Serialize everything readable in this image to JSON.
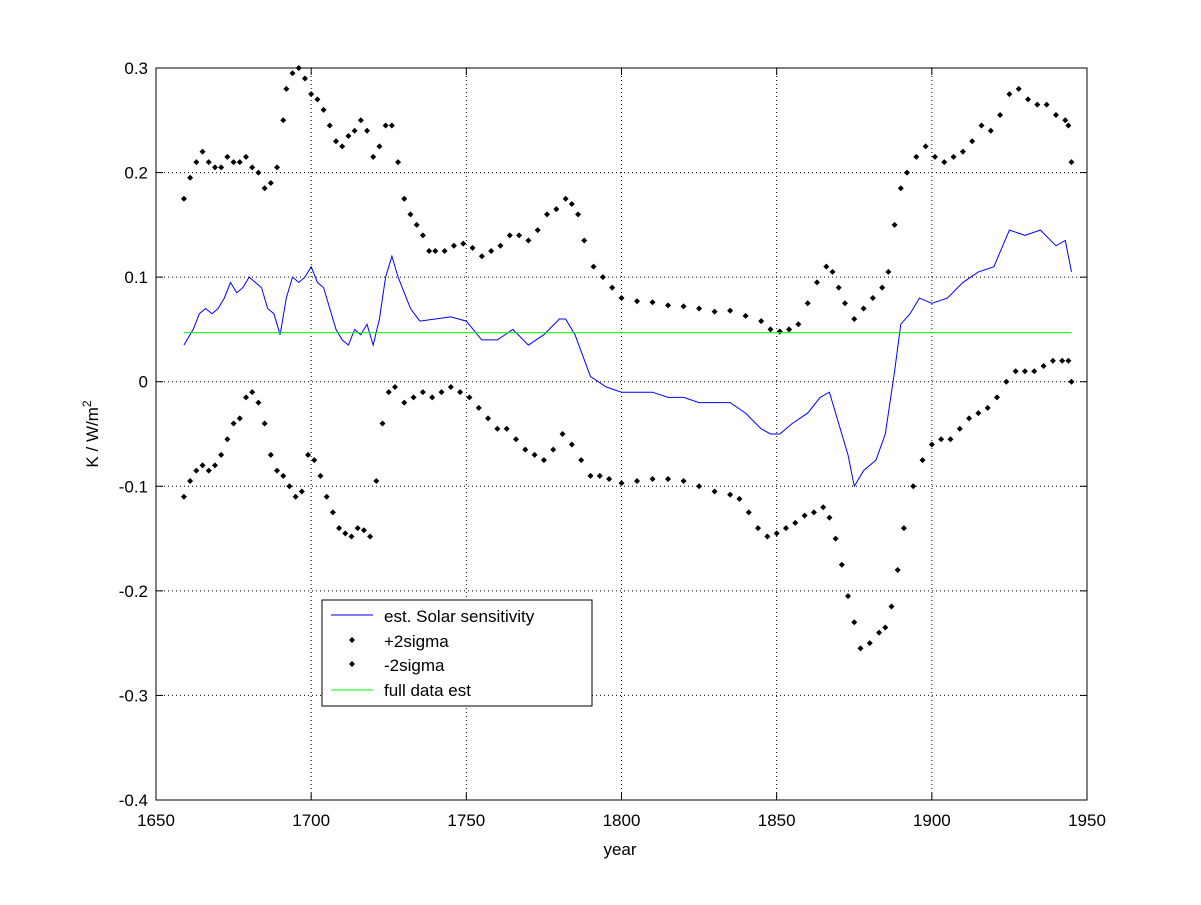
{
  "chart_data": {
    "type": "line",
    "title": "",
    "xlabel": "year",
    "ylabel": "K / W/m",
    "ylabel_superscript": "2",
    "xlim": [
      1650,
      1950
    ],
    "ylim": [
      -0.4,
      0.3
    ],
    "xticks": [
      1650,
      1700,
      1750,
      1800,
      1850,
      1900,
      1950
    ],
    "yticks": [
      -0.4,
      -0.3,
      -0.2,
      -0.1,
      0,
      0.1,
      0.2,
      0.3
    ],
    "xtick_labels": [
      "1650",
      "1700",
      "1750",
      "1800",
      "1850",
      "1900",
      "1950"
    ],
    "ytick_labels": [
      "-0.4",
      "-0.3",
      "-0.2",
      "-0.1",
      "0",
      "0.1",
      "0.2",
      "0.3"
    ],
    "grid": true,
    "legend_placement": "lower-left",
    "series": [
      {
        "name": "est. Solar sensitivity",
        "style": "line",
        "color": "#0000ff",
        "x": [
          1659,
          1662,
          1664,
          1666,
          1668,
          1670,
          1672,
          1674,
          1676,
          1678,
          1680,
          1682,
          1684,
          1686,
          1688,
          1690,
          1692,
          1694,
          1696,
          1698,
          1700,
          1702,
          1704,
          1706,
          1708,
          1710,
          1712,
          1714,
          1716,
          1718,
          1720,
          1722,
          1724,
          1726,
          1728,
          1730,
          1732,
          1735,
          1740,
          1745,
          1750,
          1755,
          1760,
          1765,
          1770,
          1775,
          1780,
          1782,
          1785,
          1790,
          1795,
          1800,
          1805,
          1810,
          1815,
          1820,
          1825,
          1830,
          1835,
          1840,
          1845,
          1848,
          1851,
          1855,
          1860,
          1864,
          1867,
          1870,
          1873,
          1875,
          1878,
          1882,
          1885,
          1888,
          1890,
          1893,
          1896,
          1900,
          1905,
          1910,
          1915,
          1920,
          1925,
          1930,
          1935,
          1940,
          1943,
          1945
        ],
        "y": [
          0.035,
          0.05,
          0.065,
          0.07,
          0.065,
          0.07,
          0.08,
          0.095,
          0.085,
          0.09,
          0.1,
          0.095,
          0.09,
          0.07,
          0.065,
          0.045,
          0.08,
          0.1,
          0.095,
          0.1,
          0.11,
          0.095,
          0.09,
          0.07,
          0.05,
          0.04,
          0.035,
          0.05,
          0.045,
          0.055,
          0.035,
          0.06,
          0.1,
          0.12,
          0.1,
          0.085,
          0.07,
          0.058,
          0.06,
          0.062,
          0.058,
          0.04,
          0.04,
          0.05,
          0.035,
          0.045,
          0.06,
          0.06,
          0.045,
          0.005,
          -0.005,
          -0.01,
          -0.01,
          -0.01,
          -0.015,
          -0.015,
          -0.02,
          -0.02,
          -0.02,
          -0.03,
          -0.045,
          -0.05,
          -0.05,
          -0.04,
          -0.03,
          -0.015,
          -0.01,
          -0.04,
          -0.07,
          -0.1,
          -0.085,
          -0.075,
          -0.05,
          0.01,
          0.055,
          0.065,
          0.08,
          0.075,
          0.08,
          0.095,
          0.105,
          0.11,
          0.145,
          0.14,
          0.145,
          0.13,
          0.135,
          0.105
        ]
      },
      {
        "name": "+2sigma",
        "style": "points",
        "color": "#000000",
        "x": [
          1659,
          1661,
          1663,
          1665,
          1667,
          1669,
          1671,
          1673,
          1675,
          1677,
          1679,
          1681,
          1683,
          1685,
          1687,
          1689,
          1691,
          1692,
          1694,
          1696,
          1698,
          1700,
          1702,
          1704,
          1706,
          1708,
          1710,
          1712,
          1714,
          1716,
          1718,
          1720,
          1722,
          1724,
          1726,
          1728,
          1730,
          1732,
          1734,
          1736,
          1738,
          1740,
          1743,
          1746,
          1749,
          1752,
          1755,
          1758,
          1761,
          1764,
          1767,
          1770,
          1773,
          1776,
          1779,
          1782,
          1784,
          1786,
          1788,
          1791,
          1794,
          1797,
          1800,
          1805,
          1810,
          1815,
          1820,
          1825,
          1830,
          1835,
          1840,
          1845,
          1848,
          1851,
          1854,
          1857,
          1860,
          1863,
          1866,
          1868,
          1870,
          1872,
          1875,
          1878,
          1881,
          1884,
          1886,
          1888,
          1890,
          1892,
          1895,
          1898,
          1901,
          1904,
          1907,
          1910,
          1913,
          1916,
          1919,
          1922,
          1925,
          1928,
          1931,
          1934,
          1937,
          1940,
          1943,
          1944,
          1945
        ],
        "y": [
          0.175,
          0.195,
          0.21,
          0.22,
          0.21,
          0.205,
          0.205,
          0.215,
          0.21,
          0.21,
          0.215,
          0.205,
          0.2,
          0.185,
          0.19,
          0.205,
          0.25,
          0.28,
          0.295,
          0.3,
          0.29,
          0.275,
          0.27,
          0.26,
          0.245,
          0.23,
          0.225,
          0.235,
          0.24,
          0.25,
          0.24,
          0.215,
          0.225,
          0.245,
          0.245,
          0.21,
          0.175,
          0.16,
          0.15,
          0.14,
          0.125,
          0.125,
          0.125,
          0.13,
          0.132,
          0.128,
          0.12,
          0.125,
          0.13,
          0.14,
          0.14,
          0.135,
          0.145,
          0.16,
          0.165,
          0.175,
          0.17,
          0.16,
          0.135,
          0.11,
          0.1,
          0.09,
          0.08,
          0.077,
          0.076,
          0.073,
          0.072,
          0.07,
          0.067,
          0.068,
          0.063,
          0.058,
          0.05,
          0.048,
          0.05,
          0.055,
          0.075,
          0.095,
          0.11,
          0.105,
          0.09,
          0.075,
          0.06,
          0.07,
          0.08,
          0.09,
          0.105,
          0.15,
          0.185,
          0.2,
          0.215,
          0.225,
          0.215,
          0.21,
          0.215,
          0.22,
          0.23,
          0.245,
          0.24,
          0.255,
          0.275,
          0.28,
          0.27,
          0.265,
          0.265,
          0.255,
          0.25,
          0.245,
          0.21
        ]
      },
      {
        "name": "-2sigma",
        "style": "points",
        "color": "#000000",
        "x": [
          1659,
          1661,
          1663,
          1665,
          1667,
          1669,
          1671,
          1673,
          1675,
          1677,
          1679,
          1681,
          1683,
          1685,
          1687,
          1689,
          1691,
          1693,
          1695,
          1697,
          1699,
          1701,
          1703,
          1705,
          1707,
          1709,
          1711,
          1713,
          1715,
          1717,
          1719,
          1721,
          1723,
          1725,
          1727,
          1730,
          1733,
          1736,
          1739,
          1742,
          1745,
          1748,
          1751,
          1754,
          1757,
          1760,
          1763,
          1766,
          1769,
          1772,
          1775,
          1778,
          1781,
          1784,
          1787,
          1790,
          1793,
          1796,
          1800,
          1805,
          1810,
          1815,
          1820,
          1825,
          1830,
          1835,
          1838,
          1841,
          1844,
          1847,
          1850,
          1853,
          1856,
          1859,
          1862,
          1865,
          1867,
          1869,
          1871,
          1873,
          1875,
          1877,
          1880,
          1883,
          1885,
          1887,
          1889,
          1891,
          1894,
          1897,
          1900,
          1903,
          1906,
          1909,
          1912,
          1915,
          1918,
          1921,
          1924,
          1927,
          1930,
          1933,
          1936,
          1939,
          1942,
          1944,
          1945
        ],
        "y": [
          -0.11,
          -0.095,
          -0.085,
          -0.08,
          -0.085,
          -0.08,
          -0.07,
          -0.055,
          -0.04,
          -0.035,
          -0.015,
          -0.01,
          -0.02,
          -0.04,
          -0.07,
          -0.085,
          -0.09,
          -0.1,
          -0.11,
          -0.105,
          -0.07,
          -0.075,
          -0.09,
          -0.11,
          -0.125,
          -0.14,
          -0.145,
          -0.148,
          -0.14,
          -0.142,
          -0.148,
          -0.095,
          -0.04,
          -0.01,
          -0.005,
          -0.02,
          -0.015,
          -0.01,
          -0.015,
          -0.01,
          -0.005,
          -0.01,
          -0.015,
          -0.025,
          -0.035,
          -0.045,
          -0.045,
          -0.055,
          -0.065,
          -0.07,
          -0.075,
          -0.065,
          -0.05,
          -0.06,
          -0.075,
          -0.09,
          -0.09,
          -0.093,
          -0.097,
          -0.095,
          -0.093,
          -0.093,
          -0.095,
          -0.1,
          -0.105,
          -0.108,
          -0.112,
          -0.125,
          -0.14,
          -0.148,
          -0.145,
          -0.14,
          -0.135,
          -0.128,
          -0.125,
          -0.12,
          -0.13,
          -0.15,
          -0.175,
          -0.205,
          -0.23,
          -0.255,
          -0.25,
          -0.24,
          -0.235,
          -0.215,
          -0.18,
          -0.14,
          -0.1,
          -0.075,
          -0.06,
          -0.055,
          -0.055,
          -0.045,
          -0.035,
          -0.03,
          -0.025,
          -0.015,
          0.0,
          0.01,
          0.01,
          0.01,
          0.015,
          0.02,
          0.02,
          0.02,
          0.0
        ]
      },
      {
        "name": "full data est",
        "style": "line",
        "color": "#00ff00",
        "x": [
          1659,
          1945
        ],
        "y": [
          0.047,
          0.047
        ]
      }
    ]
  }
}
